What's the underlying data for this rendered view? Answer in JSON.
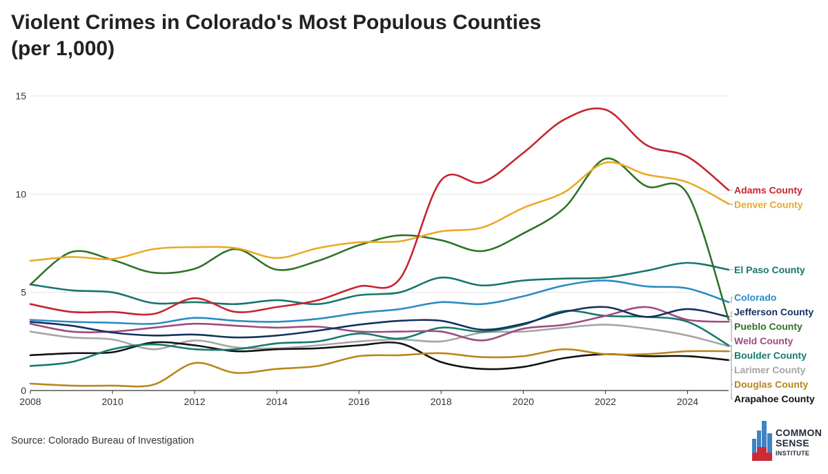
{
  "header": {
    "title_line1": "Violent Crimes in Colorado's Most Populous Counties",
    "title_line2": "(per 1,000)"
  },
  "footer": {
    "source": "Source: Colorado Bureau of Investigation",
    "logo": {
      "line1": "COMMON",
      "line2": "SENSE",
      "line3": "INSTITUTE",
      "colors": [
        "#1f2a3d",
        "#cc2a36",
        "#3f83c5"
      ]
    }
  },
  "chart_data": {
    "type": "line",
    "title": "Violent Crimes in Colorado's Most Populous Counties (per 1,000)",
    "xlabel": "",
    "ylabel": "",
    "x": [
      2008,
      2009,
      2010,
      2011,
      2012,
      2013,
      2014,
      2015,
      2016,
      2017,
      2018,
      2019,
      2020,
      2021,
      2022,
      2023,
      2024,
      2025
    ],
    "xlim": [
      2008,
      2025
    ],
    "ylim": [
      0,
      15
    ],
    "x_ticks": [
      2008,
      2010,
      2012,
      2014,
      2016,
      2018,
      2020,
      2022,
      2024
    ],
    "y_ticks": [
      0,
      5,
      10,
      15
    ],
    "grid": "horizontal",
    "legend": "direct labels at right end",
    "series": [
      {
        "name": "Adams County",
        "color": "#c8232f",
        "values": [
          4.4,
          4.0,
          4.0,
          3.9,
          4.7,
          4.0,
          4.25,
          4.6,
          5.3,
          5.7,
          10.7,
          10.6,
          12.1,
          13.8,
          14.3,
          12.5,
          11.9,
          10.2
        ]
      },
      {
        "name": "Denver County",
        "color": "#eaa925",
        "values": [
          6.6,
          6.8,
          6.7,
          7.2,
          7.3,
          7.25,
          6.75,
          7.25,
          7.55,
          7.6,
          8.1,
          8.3,
          9.3,
          10.1,
          11.6,
          11.0,
          10.6,
          9.5
        ]
      },
      {
        "name": "El Paso County",
        "color": "#17756d",
        "values": [
          5.4,
          5.1,
          5.0,
          4.45,
          4.5,
          4.4,
          4.6,
          4.4,
          4.85,
          5.0,
          5.75,
          5.35,
          5.6,
          5.7,
          5.75,
          6.1,
          6.5,
          6.15
        ]
      },
      {
        "name": "Colorado",
        "color": "#2a8bc3",
        "values": [
          3.6,
          3.5,
          3.45,
          3.4,
          3.7,
          3.55,
          3.5,
          3.65,
          3.95,
          4.15,
          4.5,
          4.4,
          4.8,
          5.35,
          5.6,
          5.3,
          5.2,
          4.5
        ]
      },
      {
        "name": "Jefferson County",
        "color": "#14305d",
        "values": [
          3.5,
          3.3,
          2.95,
          2.8,
          2.85,
          2.7,
          2.8,
          3.05,
          3.35,
          3.55,
          3.55,
          3.1,
          3.4,
          4.0,
          4.25,
          3.75,
          4.15,
          3.75
        ]
      },
      {
        "name": "Weld County",
        "color": "#9e4a7f",
        "values": [
          3.4,
          3.0,
          3.0,
          3.2,
          3.4,
          3.3,
          3.2,
          3.25,
          3.0,
          3.0,
          3.0,
          2.55,
          3.15,
          3.35,
          3.8,
          4.25,
          3.6,
          3.5
        ]
      },
      {
        "name": "Pueblo County",
        "color": "#2f7228",
        "values": [
          5.4,
          7.05,
          6.65,
          6.0,
          6.2,
          7.2,
          6.15,
          6.6,
          7.4,
          7.9,
          7.65,
          7.1,
          8.0,
          9.3,
          11.8,
          10.4,
          10.0,
          3.6
        ]
      },
      {
        "name": "Boulder County",
        "color": "#157a6e",
        "values": [
          1.25,
          1.45,
          2.1,
          2.35,
          2.1,
          2.1,
          2.4,
          2.5,
          2.9,
          2.65,
          3.2,
          3.0,
          3.35,
          4.05,
          3.8,
          3.75,
          3.5,
          2.3
        ]
      },
      {
        "name": "Larimer County",
        "color": "#a5a5a5",
        "values": [
          3.0,
          2.7,
          2.6,
          2.1,
          2.55,
          2.2,
          2.15,
          2.3,
          2.5,
          2.6,
          2.5,
          2.95,
          3.0,
          3.2,
          3.35,
          3.15,
          2.8,
          2.25
        ]
      },
      {
        "name": "Douglas County",
        "color": "#b9861b",
        "values": [
          0.35,
          0.25,
          0.25,
          0.3,
          1.4,
          0.9,
          1.1,
          1.25,
          1.75,
          1.8,
          1.9,
          1.7,
          1.75,
          2.1,
          1.85,
          1.85,
          2.0,
          2.0
        ]
      },
      {
        "name": "Arapahoe County",
        "color": "#111111",
        "values": [
          1.8,
          1.9,
          1.95,
          2.45,
          2.3,
          2.0,
          2.1,
          2.15,
          2.3,
          2.4,
          1.45,
          1.1,
          1.2,
          1.65,
          1.85,
          1.75,
          1.75,
          1.55
        ]
      }
    ],
    "labels": [
      "Adams County",
      "Denver County",
      "El Paso County",
      "Colorado",
      "Jefferson County",
      "Weld County",
      "Pueblo County",
      "Boulder County",
      "Larimer County",
      "Douglas County",
      "Arapahoe County"
    ]
  }
}
